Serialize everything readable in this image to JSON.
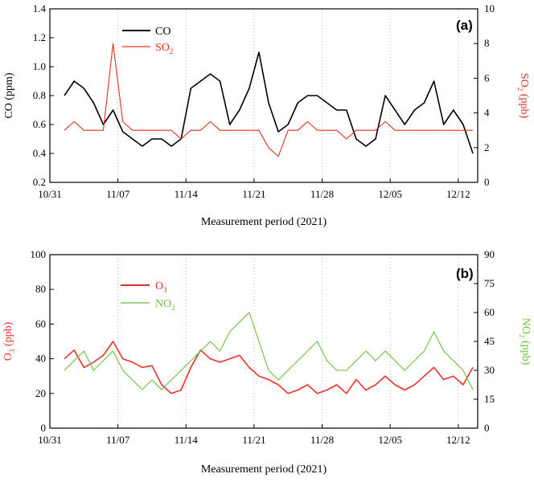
{
  "chart_data": [
    {
      "type": "line",
      "panel_label": "(a)",
      "xlabel": "Measurement period (2021)",
      "x_ticks": [
        "10/31",
        "11/07",
        "11/14",
        "11/21",
        "11/28",
        "12/05",
        "12/12"
      ],
      "x_range": [
        "2021-10-31",
        "2021-12-14"
      ],
      "ylabel_left": "CO (ppm)",
      "ylim_left": [
        0.2,
        1.4
      ],
      "yticks_left": [
        "0.2",
        "0.4",
        "0.6",
        "0.8",
        "1.0",
        "1.2",
        "1.4"
      ],
      "ylabel_right_main": "SO",
      "ylabel_right_sub": "2",
      "ylabel_right_unit": " (ppb)",
      "ylim_right": [
        0,
        10
      ],
      "yticks_right": [
        "0",
        "2",
        "4",
        "6",
        "8",
        "10"
      ],
      "legend_position": "top-left",
      "grid": "vertical dotted at x ticks",
      "series": [
        {
          "name": "CO",
          "axis": "left",
          "color": "#000000",
          "x": [
            1.5,
            2.5,
            3.5,
            4.5,
            5.5,
            6.5,
            7.5,
            8.5,
            9.5,
            10.5,
            11.5,
            12.5,
            13.5,
            14.5,
            15.5,
            16.5,
            17.5,
            18.5,
            19.5,
            20.5,
            21.5,
            22.5,
            23.5,
            24.5,
            25.5,
            26.5,
            27.5,
            28.5,
            29.5,
            30.5,
            31.5,
            32.5,
            33.5,
            34.5,
            35.5,
            36.5,
            37.5,
            38.5,
            39.5,
            40.5,
            41.5,
            42.5,
            43.5
          ],
          "values": [
            0.8,
            0.9,
            0.85,
            0.75,
            0.6,
            0.7,
            0.55,
            0.5,
            0.45,
            0.5,
            0.5,
            0.45,
            0.5,
            0.85,
            0.9,
            0.95,
            0.9,
            0.6,
            0.7,
            0.85,
            1.1,
            0.75,
            0.55,
            0.6,
            0.75,
            0.8,
            0.8,
            0.75,
            0.7,
            0.7,
            0.5,
            0.45,
            0.5,
            0.8,
            0.7,
            0.6,
            0.7,
            0.75,
            0.9,
            0.6,
            0.7,
            0.6,
            0.4
          ]
        },
        {
          "name_main": "SO",
          "name_sub": "2",
          "axis": "right",
          "color": "#e03020",
          "x": [
            1.5,
            2.5,
            3.5,
            4.5,
            5.5,
            6.5,
            7.5,
            8.5,
            9.5,
            10.5,
            11.5,
            12.5,
            13.5,
            14.5,
            15.5,
            16.5,
            17.5,
            18.5,
            19.5,
            20.5,
            21.5,
            22.5,
            23.5,
            24.5,
            25.5,
            26.5,
            27.5,
            28.5,
            29.5,
            30.5,
            31.5,
            32.5,
            33.5,
            34.5,
            35.5,
            36.5,
            37.5,
            38.5,
            39.5,
            40.5,
            41.5,
            42.5,
            43.5
          ],
          "values": [
            3,
            3.5,
            3,
            3,
            3,
            8,
            3.5,
            3,
            3,
            3,
            3,
            3,
            2.5,
            3,
            3,
            3.5,
            3,
            3,
            3,
            3,
            3,
            2,
            1.5,
            3,
            3,
            3.5,
            3,
            3,
            3,
            2.5,
            3,
            3,
            3,
            3.5,
            3,
            3,
            3,
            3,
            3,
            3,
            3,
            3,
            3
          ]
        }
      ]
    },
    {
      "type": "line",
      "panel_label": "(b)",
      "xlabel": "Measurement period (2021)",
      "x_ticks": [
        "10/31",
        "11/07",
        "11/14",
        "11/21",
        "11/28",
        "12/05",
        "12/12"
      ],
      "x_range": [
        "2021-10-31",
        "2021-12-14"
      ],
      "ylabel_left_main": "O",
      "ylabel_left_sub": "3",
      "ylabel_left_unit": " (ppb)",
      "ylim_left": [
        0,
        100
      ],
      "yticks_left": [
        "0",
        "20",
        "40",
        "60",
        "80",
        "100"
      ],
      "ylabel_right_main": "NO",
      "ylabel_right_sub": "2",
      "ylabel_right_unit": " (ppb)",
      "ylim_right": [
        0,
        90
      ],
      "yticks_right": [
        "0",
        "15",
        "30",
        "45",
        "60",
        "75",
        "90"
      ],
      "legend_position": "top-center",
      "grid": "vertical dotted at x ticks",
      "series": [
        {
          "name_main": "O",
          "name_sub": "3",
          "axis": "left",
          "color": "#e8322a",
          "x": [
            1.5,
            2.5,
            3.5,
            4.5,
            5.5,
            6.5,
            7.5,
            8.5,
            9.5,
            10.5,
            11.5,
            12.5,
            13.5,
            14.5,
            15.5,
            16.5,
            17.5,
            18.5,
            19.5,
            20.5,
            21.5,
            22.5,
            23.5,
            24.5,
            25.5,
            26.5,
            27.5,
            28.5,
            29.5,
            30.5,
            31.5,
            32.5,
            33.5,
            34.5,
            35.5,
            36.5,
            37.5,
            38.5,
            39.5,
            40.5,
            41.5,
            42.5,
            43.5
          ],
          "values": [
            40,
            45,
            35,
            38,
            42,
            50,
            40,
            38,
            35,
            36,
            25,
            20,
            22,
            35,
            45,
            40,
            38,
            40,
            42,
            35,
            30,
            28,
            25,
            20,
            22,
            25,
            20,
            22,
            25,
            20,
            28,
            22,
            25,
            30,
            25,
            22,
            25,
            30,
            35,
            28,
            30,
            25,
            35
          ]
        },
        {
          "name_main": "NO",
          "name_sub": "2",
          "axis": "right",
          "color": "#6abf3a",
          "x": [
            1.5,
            2.5,
            3.5,
            4.5,
            5.5,
            6.5,
            7.5,
            8.5,
            9.5,
            10.5,
            11.5,
            12.5,
            13.5,
            14.5,
            15.5,
            16.5,
            17.5,
            18.5,
            19.5,
            20.5,
            21.5,
            22.5,
            23.5,
            24.5,
            25.5,
            26.5,
            27.5,
            28.5,
            29.5,
            30.5,
            31.5,
            32.5,
            33.5,
            34.5,
            35.5,
            36.5,
            37.5,
            38.5,
            39.5,
            40.5,
            41.5,
            42.5,
            43.5
          ],
          "values": [
            30,
            35,
            40,
            30,
            35,
            40,
            30,
            25,
            20,
            25,
            20,
            25,
            30,
            35,
            40,
            45,
            40,
            50,
            55,
            60,
            45,
            30,
            25,
            30,
            35,
            40,
            45,
            35,
            30,
            30,
            35,
            40,
            35,
            40,
            35,
            30,
            35,
            40,
            50,
            40,
            35,
            30,
            20
          ]
        }
      ]
    }
  ],
  "colors": {
    "co": "#000000",
    "so2": "#e03020",
    "o3": "#e8322a",
    "no2": "#6abf3a",
    "grid": "#bbbbbb"
  }
}
